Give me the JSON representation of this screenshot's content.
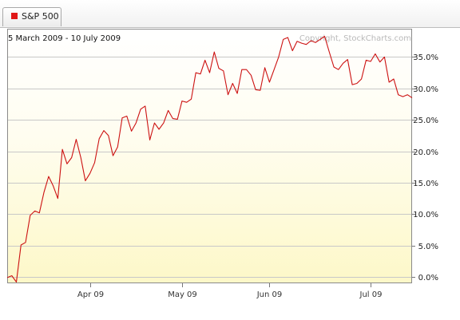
{
  "legend_tab": {
    "label": "S&P 500",
    "swatch_color": "#e01818"
  },
  "chart_data": {
    "type": "line",
    "date_range_label": "5 March 2009 - 10 July 2009",
    "watermark": "Copyright, StockCharts.com",
    "y_unit": "percent change",
    "ylim": [
      -1,
      39.5
    ],
    "grid": true,
    "y_ticks": [
      0,
      5,
      10,
      15,
      20,
      25,
      30,
      35
    ],
    "y_tick_labels": [
      "0.0%",
      "5.0%",
      "10.0%",
      "15.0%",
      "20.0%",
      "25.0%",
      "30.0%",
      "35.0%"
    ],
    "x_ticks": [
      {
        "index": 18,
        "label": "Apr 09"
      },
      {
        "index": 38,
        "label": "May 09"
      },
      {
        "index": 57,
        "label": "Jun 09"
      },
      {
        "index": 79,
        "label": "Jul 09"
      }
    ],
    "series": [
      {
        "color": "#cc1111",
        "values": [
          -0.1,
          0.2,
          -0.8,
          5.1,
          5.5,
          9.8,
          10.5,
          10.2,
          13.5,
          16.0,
          14.5,
          12.5,
          20.3,
          18.0,
          19.0,
          21.9,
          19.0,
          15.3,
          16.5,
          18.2,
          22.0,
          23.3,
          22.5,
          19.3,
          20.7,
          25.3,
          25.6,
          23.2,
          24.5,
          26.7,
          27.2,
          21.8,
          24.5,
          23.5,
          24.5,
          26.5,
          25.2,
          25.1,
          28.0,
          27.8,
          28.3,
          32.5,
          32.3,
          34.5,
          32.5,
          35.8,
          33.2,
          32.8,
          29.0,
          30.8,
          29.2,
          33.0,
          33.0,
          32.1,
          29.8,
          29.7,
          33.3,
          31.0,
          33.0,
          35.0,
          37.8,
          38.1,
          36.0,
          37.5,
          37.2,
          37.0,
          37.6,
          37.3,
          37.8,
          38.3,
          35.8,
          33.4,
          33.0,
          34.0,
          34.6,
          30.6,
          30.8,
          31.5,
          34.5,
          34.3,
          35.5,
          34.2,
          35.0,
          31.0,
          31.5,
          29.0,
          28.7,
          29.0,
          28.5
        ]
      }
    ]
  }
}
